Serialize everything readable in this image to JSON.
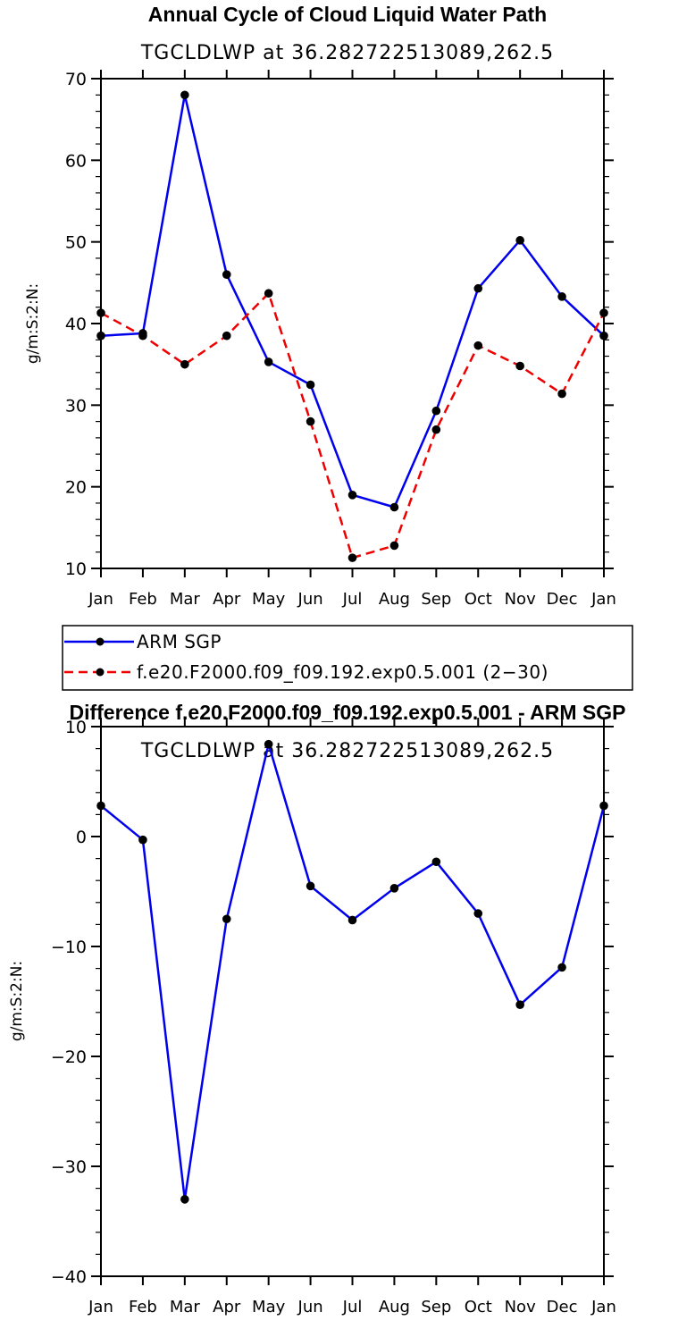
{
  "chart_data": [
    {
      "type": "line",
      "title": "Annual Cycle of Cloud Liquid Water Path",
      "subtitle": "TGCLDLWP  at  36.282722513089,262.5",
      "ylabel": "g/m:S:2:N:",
      "ylim": [
        10,
        70
      ],
      "yticks": [
        10,
        20,
        30,
        40,
        50,
        60,
        70
      ],
      "categories": [
        "Jan",
        "Feb",
        "Mar",
        "Apr",
        "May",
        "Jun",
        "Jul",
        "Aug",
        "Sep",
        "Oct",
        "Nov",
        "Dec",
        "Jan"
      ],
      "series": [
        {
          "name": "ARM SGP",
          "color": "#0000ee",
          "style": "solid",
          "values": [
            38.5,
            38.8,
            68.0,
            46.0,
            35.3,
            32.5,
            19.0,
            17.5,
            29.3,
            44.3,
            50.2,
            43.3,
            38.5
          ]
        },
        {
          "name": "f.e20.F2000.f09_f09.192.exp0.5.001 (2−30)",
          "color": "#ee0000",
          "style": "dashed",
          "values": [
            41.3,
            38.5,
            35.0,
            38.5,
            43.7,
            28.0,
            11.3,
            12.8,
            27.0,
            37.3,
            34.8,
            31.4,
            41.3
          ]
        }
      ]
    },
    {
      "type": "line",
      "title": "Difference f.e20.F2000.f09_f09.192.exp0.5.001 - ARM SGP",
      "subtitle": "TGCLDLWP  at  36.282722513089,262.5",
      "ylabel": "g/m:S:2:N:",
      "ylim": [
        -40,
        10
      ],
      "yticks": [
        -40,
        -30,
        -20,
        -10,
        0,
        10
      ],
      "ytick_labels": [
        "−40",
        "−30",
        "−20",
        "−10",
        "0",
        "10"
      ],
      "categories": [
        "Jan",
        "Feb",
        "Mar",
        "Apr",
        "May",
        "Jun",
        "Jul",
        "Aug",
        "Sep",
        "Oct",
        "Nov",
        "Dec",
        "Jan"
      ],
      "series": [
        {
          "name": "Difference",
          "color": "#0000ee",
          "style": "solid",
          "values": [
            2.8,
            -0.3,
            -33.0,
            -7.5,
            8.4,
            -4.5,
            -7.6,
            -4.7,
            -2.3,
            -7.0,
            -15.3,
            -11.9,
            2.8
          ]
        }
      ]
    }
  ]
}
